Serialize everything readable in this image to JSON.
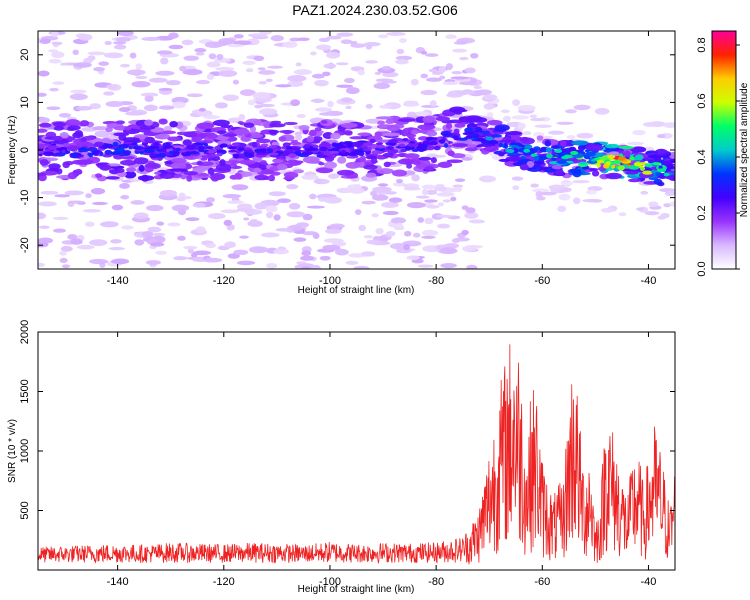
{
  "title": "PAZ1.2024.230.03.52.G06",
  "chart_data": [
    {
      "type": "heatmap",
      "xlabel": "Height of straight line (km)",
      "ylabel": "Frequency (Hz)",
      "xlim": [
        -155,
        -35
      ],
      "ylim": [
        -25,
        25
      ],
      "xticks": [
        -140,
        -120,
        -100,
        -80,
        -60,
        -40
      ],
      "yticks": [
        -20,
        -10,
        0,
        10,
        20
      ],
      "colorbar": {
        "label": "Normalized spectral amplitude",
        "range": [
          0.0,
          0.85
        ],
        "ticks": [
          0.0,
          0.2,
          0.4,
          0.6,
          0.8
        ],
        "colormap": [
          "#ffffff",
          "#d9b8ff",
          "#9933ff",
          "#4400ff",
          "#0033ff",
          "#00cccc",
          "#00ff66",
          "#ccff00",
          "#ffcc00",
          "#ff2200",
          "#ff0099"
        ]
      },
      "ridge": {
        "x": [
          -155,
          -140,
          -120,
          -100,
          -80,
          -75,
          -70,
          -65,
          -60,
          -55,
          -50,
          -45,
          -40,
          -35
        ],
        "frequency_hz": [
          0,
          0,
          0,
          0,
          1.5,
          3.5,
          3,
          0,
          -1,
          -2,
          -2,
          -2.5,
          -3.5,
          -4.5
        ],
        "peak_amplitude": [
          0.3,
          0.35,
          0.3,
          0.3,
          0.3,
          0.35,
          0.4,
          0.45,
          0.5,
          0.55,
          0.6,
          0.8,
          0.6,
          0.4
        ]
      }
    },
    {
      "type": "line",
      "xlabel": "Height of straight line (km)",
      "ylabel": "SNR (10 * v/v)",
      "xlim": [
        -155,
        -35
      ],
      "ylim": [
        0,
        2000
      ],
      "xticks": [
        -140,
        -120,
        -100,
        -80,
        -60,
        -40
      ],
      "yticks": [
        500,
        1000,
        1500,
        2000
      ],
      "color": "#ee2222",
      "series": [
        {
          "x": [
            -155,
            -150,
            -145,
            -140,
            -135,
            -130,
            -125,
            -120,
            -115,
            -110,
            -105,
            -100,
            -95,
            -90,
            -85,
            -80,
            -75,
            -72,
            -70,
            -68,
            -66,
            -65,
            -64,
            -63,
            -62,
            -61,
            -60,
            -58,
            -56,
            -55,
            -54,
            -53,
            -52,
            -51,
            -50,
            -49,
            -48,
            -47,
            -46,
            -45,
            -44,
            -43,
            -42,
            -41,
            -40,
            -39,
            -38,
            -37,
            -36,
            -35
          ],
          "values": [
            150,
            160,
            170,
            180,
            170,
            190,
            180,
            175,
            190,
            185,
            170,
            200,
            180,
            190,
            185,
            195,
            250,
            500,
            1000,
            1500,
            1900,
            2000,
            1650,
            1000,
            1500,
            1450,
            900,
            600,
            750,
            1400,
            1850,
            1200,
            800,
            1050,
            400,
            600,
            1400,
            1200,
            1000,
            800,
            600,
            900,
            1000,
            700,
            900,
            1200,
            1050,
            800,
            500,
            900
          ]
        }
      ]
    }
  ]
}
